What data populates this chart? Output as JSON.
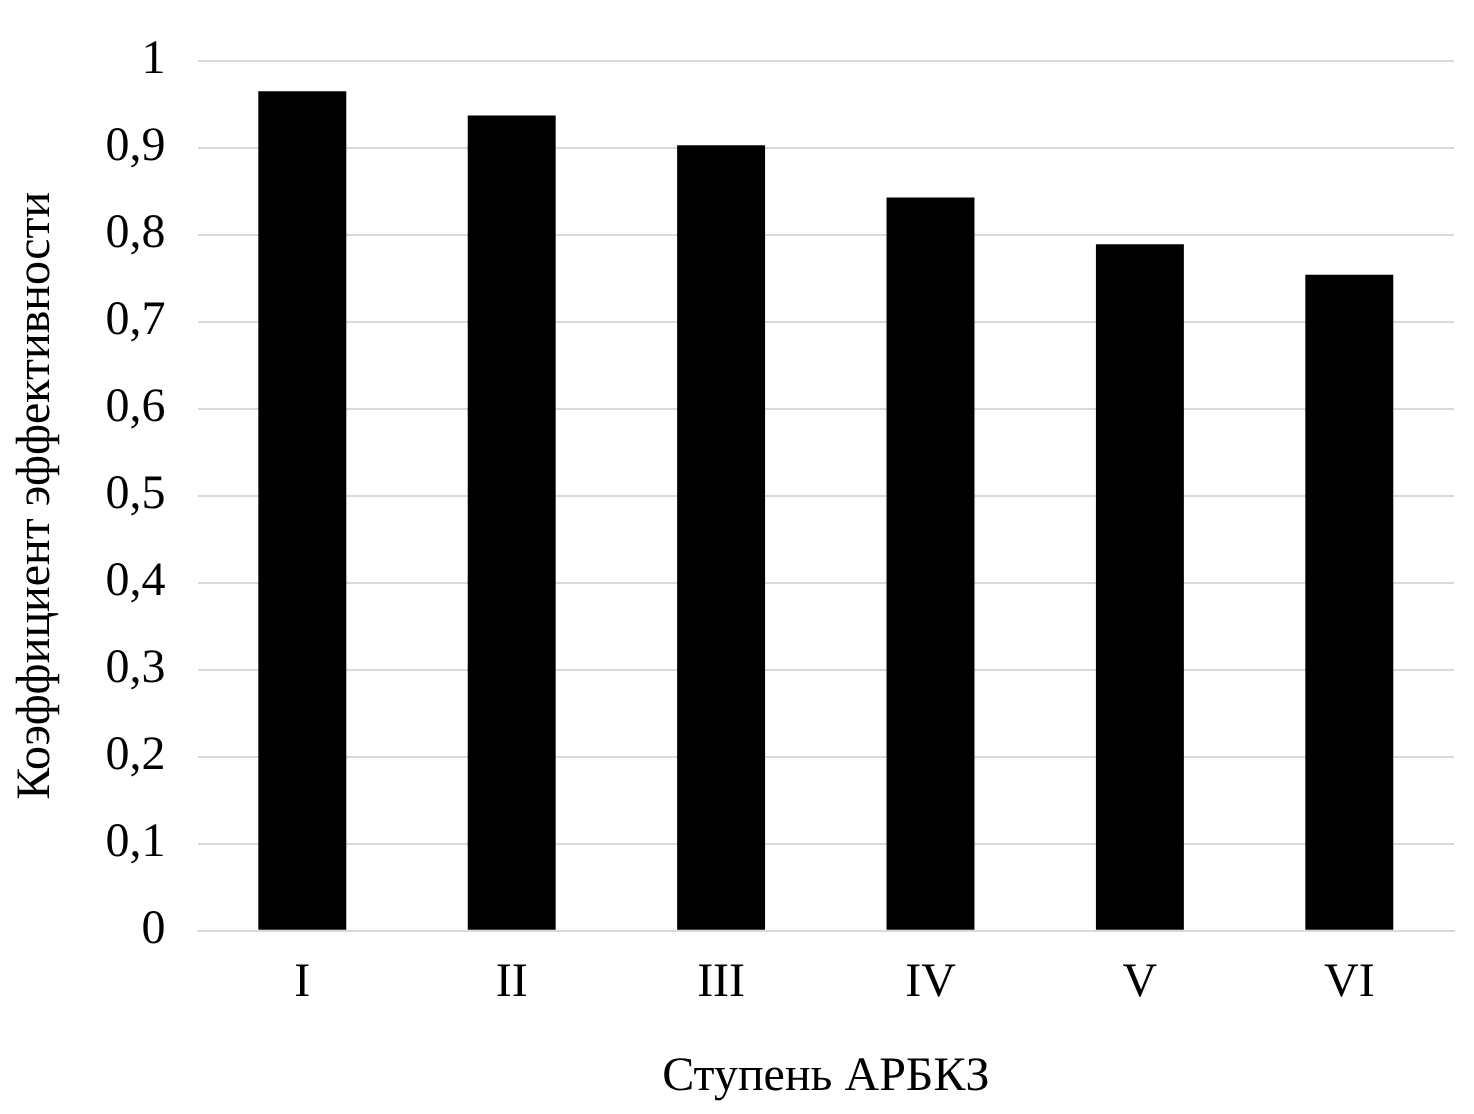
{
  "chart_data": {
    "type": "bar",
    "xlabel": "Ступень АРБКЗ",
    "ylabel": "Коэффициент эффективности",
    "categories": [
      "I",
      "II",
      "III",
      "IV",
      "V",
      "VI"
    ],
    "values": [
      0.965,
      0.937,
      0.903,
      0.843,
      0.789,
      0.754
    ],
    "color": "#000000",
    "ylim": [
      0,
      1
    ],
    "yticks": [
      {
        "value": 0,
        "label": "0"
      },
      {
        "value": 0.1,
        "label": "0,1"
      },
      {
        "value": 0.2,
        "label": "0,2"
      },
      {
        "value": 0.3,
        "label": "0,3"
      },
      {
        "value": 0.4,
        "label": "0,4"
      },
      {
        "value": 0.5,
        "label": "0,5"
      },
      {
        "value": 0.6,
        "label": "0,6"
      },
      {
        "value": 0.7,
        "label": "0,7"
      },
      {
        "value": 0.8,
        "label": "0,8"
      },
      {
        "value": 0.9,
        "label": "0,9"
      },
      {
        "value": 1,
        "label": "1"
      }
    ],
    "grid": "y",
    "legend": false
  }
}
